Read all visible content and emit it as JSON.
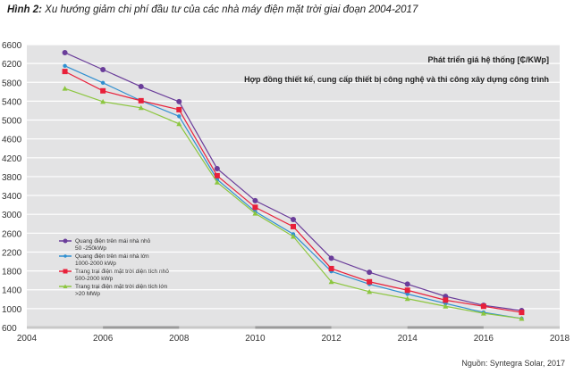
{
  "title_prefix": "Hình 2:",
  "title_text": " Xu hướng giảm chi phí đầu tư của các nhà máy điện mặt trời giai đoạn 2004-2017",
  "source": "Nguồn: Syntegra Solar, 2017",
  "chart_data": {
    "type": "line",
    "title": "Hình 2: Xu hướng giảm chi phí đầu tư của các nhà máy điện mặt trời giai đoạn 2004-2017",
    "annotations": [
      "Phát triển giá hệ thống [₵/KWp]",
      "Hợp đồng thiết kế, cung cấp thiết bị công nghệ và thi công xây dựng công trình"
    ],
    "xlim": [
      2004,
      2018
    ],
    "ylim": [
      600,
      6600
    ],
    "xticks": [
      2004,
      2006,
      2008,
      2010,
      2012,
      2014,
      2016,
      2018
    ],
    "yticks": [
      600,
      1000,
      1400,
      1800,
      2200,
      2600,
      3000,
      3400,
      3800,
      4200,
      4600,
      5000,
      5400,
      5800,
      6200,
      6600
    ],
    "grid": true,
    "legend_position": "bottom-left",
    "x": [
      2005,
      2006,
      2007,
      2008,
      2009,
      2010,
      2011,
      2012,
      2013,
      2014,
      2015,
      2016,
      2017
    ],
    "series": [
      {
        "name": "Quang điện trên mái nhà nhỏ",
        "name2": "50 -250kWp",
        "color": "#6a3d9a",
        "marker": "circle",
        "values": [
          6430,
          6070,
          5710,
          5390,
          3970,
          3290,
          2890,
          2070,
          1770,
          1520,
          1260,
          1070,
          960
        ]
      },
      {
        "name": "Quang điện trên mái nhà lớn",
        "name2": "1000-2000 kWp",
        "color": "#2f8fd0",
        "marker": "diamond",
        "values": [
          6150,
          5790,
          5410,
          5080,
          3740,
          3060,
          2580,
          1790,
          1520,
          1310,
          1110,
          920,
          790
        ]
      },
      {
        "name": "Trang trại điện mặt trời diện tích nhỏ",
        "name2": "500-2000 kWp",
        "color": "#e8203a",
        "marker": "square",
        "values": [
          6030,
          5620,
          5410,
          5220,
          3820,
          3150,
          2740,
          1850,
          1570,
          1390,
          1180,
          1050,
          920
        ]
      },
      {
        "name": "Trang trại điện mặt trời diện tích lớn",
        "name2": ">20 MWp",
        "color": "#8cc63f",
        "marker": "triangle",
        "values": [
          5670,
          5390,
          5260,
          4920,
          3680,
          3020,
          2530,
          1570,
          1360,
          1210,
          1050,
          900,
          790
        ]
      }
    ]
  }
}
